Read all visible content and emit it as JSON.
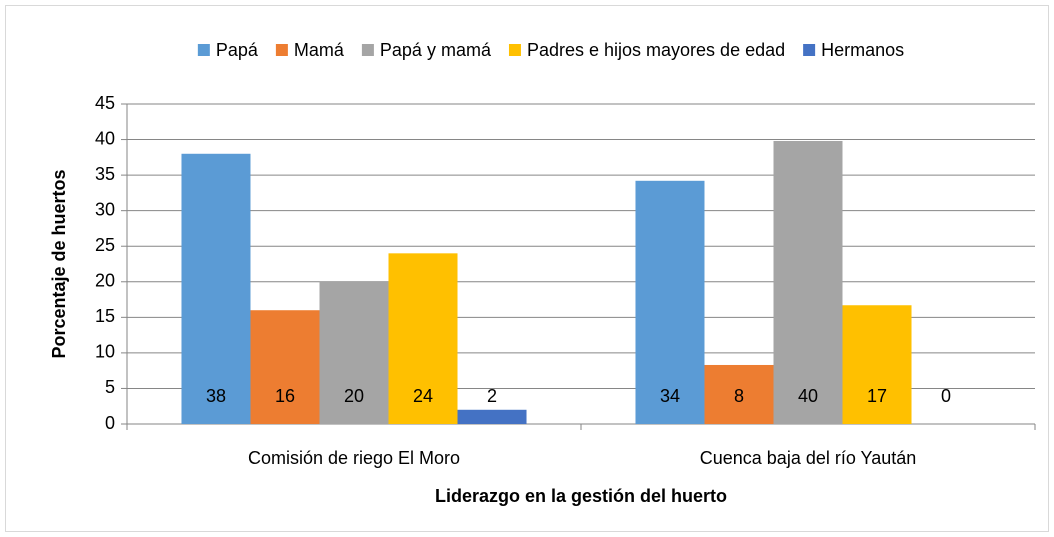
{
  "chart_data": {
    "type": "bar",
    "xlabel": "Liderazgo en la gestión del huerto",
    "ylabel": "Porcentaje de huertos",
    "categories": [
      "Comisión de riego El Moro",
      "Cuenca baja del río Yaután"
    ],
    "series": [
      {
        "name": "Papá",
        "color": "#5b9bd5",
        "values": [
          38,
          34.2
        ],
        "value_labels": [
          "38",
          "34"
        ]
      },
      {
        "name": "Mamá",
        "color": "#ed7d31",
        "values": [
          16,
          8.3
        ],
        "value_labels": [
          "16",
          "8"
        ]
      },
      {
        "name": "Papá y mamá",
        "color": "#a5a5a5",
        "values": [
          20,
          39.8
        ],
        "value_labels": [
          "20",
          "40"
        ]
      },
      {
        "name": "Padres e hijos mayores de edad",
        "color": "#ffc000",
        "values": [
          24,
          16.7
        ],
        "value_labels": [
          "24",
          "17"
        ]
      },
      {
        "name": "Hermanos",
        "color": "#4472c4",
        "values": [
          2,
          0
        ],
        "value_labels": [
          "2",
          "0"
        ]
      }
    ],
    "ylim": [
      0,
      45
    ],
    "yticks": [
      0,
      5,
      10,
      15,
      20,
      25,
      30,
      35,
      40,
      45
    ],
    "grid": true,
    "legend": "top"
  }
}
